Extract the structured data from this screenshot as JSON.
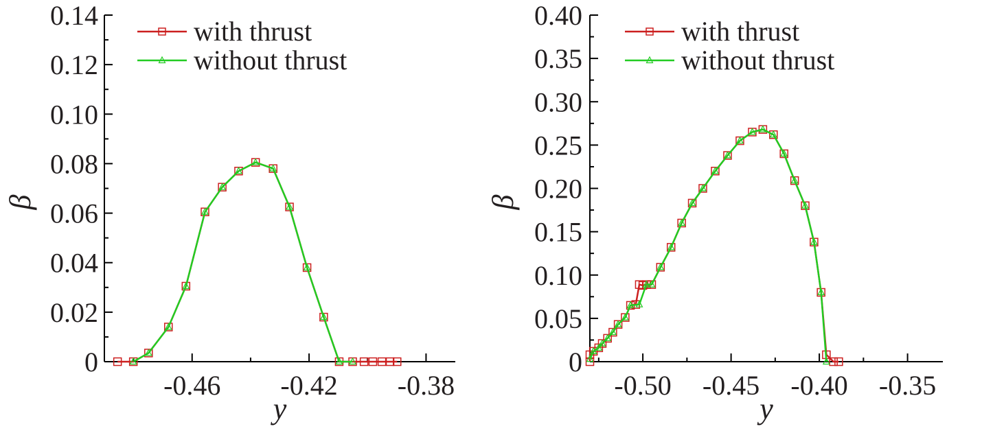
{
  "chart_data": [
    {
      "type": "line",
      "xlabel": "y",
      "ylabel": "β",
      "xlim": [
        -0.49,
        -0.37
      ],
      "ylim": [
        0,
        0.14
      ],
      "xticks": [
        -0.46,
        -0.42,
        -0.38
      ],
      "xtick_labels": [
        "-0.46",
        "-0.42",
        "-0.38"
      ],
      "yticks": [
        0,
        0.02,
        0.04,
        0.06,
        0.08,
        0.1,
        0.12,
        0.14
      ],
      "ytick_labels": [
        "0",
        "0.02",
        "0.04",
        "0.06",
        "0.08",
        "0.10",
        "0.12",
        "0.14"
      ],
      "legend_position": "top-left",
      "series": [
        {
          "name": "with thrust",
          "color": "#cc1f1f",
          "marker": "square",
          "x": [
            -0.4855,
            -0.4801,
            -0.4749,
            -0.4681,
            -0.4621,
            -0.4556,
            -0.4497,
            -0.4441,
            -0.4383,
            -0.4323,
            -0.4267,
            -0.4207,
            -0.415,
            -0.4097,
            -0.4051,
            -0.4012,
            -0.3982,
            -0.3951,
            -0.3923,
            -0.3899
          ],
          "y": [
            0,
            0,
            0.0035,
            0.014,
            0.0305,
            0.0605,
            0.0705,
            0.077,
            0.0805,
            0.078,
            0.0625,
            0.038,
            0.018,
            0,
            0,
            0,
            0,
            0,
            0,
            0
          ]
        },
        {
          "name": "without thrust",
          "color": "#22cc22",
          "marker": "triangle",
          "x": [
            -0.4801,
            -0.4749,
            -0.4681,
            -0.4621,
            -0.4556,
            -0.4497,
            -0.4441,
            -0.4383,
            -0.4323,
            -0.4267,
            -0.4207,
            -0.415,
            -0.4097,
            -0.4051
          ],
          "y": [
            0,
            0.0035,
            0.014,
            0.0305,
            0.0605,
            0.0705,
            0.077,
            0.0805,
            0.078,
            0.0625,
            0.038,
            0.018,
            0,
            0
          ]
        }
      ]
    },
    {
      "type": "line",
      "xlabel": "y",
      "ylabel": "β",
      "xlim": [
        -0.53,
        -0.33
      ],
      "ylim": [
        0,
        0.4
      ],
      "xticks": [
        -0.5,
        -0.45,
        -0.4,
        -0.35
      ],
      "xtick_labels": [
        "-0.50",
        "-0.45",
        "-0.40",
        "-0.35"
      ],
      "yticks": [
        0,
        0.05,
        0.1,
        0.15,
        0.2,
        0.25,
        0.3,
        0.35,
        0.4
      ],
      "ytick_labels": [
        "0",
        "0.05",
        "0.10",
        "0.15",
        "0.20",
        "0.25",
        "0.30",
        "0.35",
        "0.40"
      ],
      "legend_position": "top-left",
      "series": [
        {
          "name": "with thrust",
          "color": "#cc1f1f",
          "marker": "square",
          "x": [
            -0.53,
            -0.53,
            -0.528,
            -0.525,
            -0.523,
            -0.52,
            -0.517,
            -0.514,
            -0.51,
            -0.507,
            -0.504,
            -0.502,
            -0.5,
            -0.498,
            -0.495,
            -0.49,
            -0.484,
            -0.478,
            -0.472,
            -0.466,
            -0.459,
            -0.452,
            -0.445,
            -0.438,
            -0.432,
            -0.426,
            -0.42,
            -0.414,
            -0.408,
            -0.403,
            -0.399,
            -0.396,
            -0.392,
            -0.389
          ],
          "y": [
            0,
            0.008,
            0.012,
            0.016,
            0.021,
            0.027,
            0.034,
            0.043,
            0.051,
            0.065,
            0.066,
            0.089,
            0.088,
            0.089,
            0.089,
            0.109,
            0.132,
            0.16,
            0.183,
            0.2,
            0.22,
            0.238,
            0.255,
            0.265,
            0.268,
            0.262,
            0.24,
            0.209,
            0.18,
            0.138,
            0.08,
            0.008,
            0,
            0
          ]
        },
        {
          "name": "without thrust",
          "color": "#22cc22",
          "marker": "triangle",
          "x": [
            -0.53,
            -0.528,
            -0.525,
            -0.523,
            -0.52,
            -0.517,
            -0.514,
            -0.51,
            -0.507,
            -0.502,
            -0.498,
            -0.495,
            -0.49,
            -0.484,
            -0.478,
            -0.472,
            -0.466,
            -0.459,
            -0.452,
            -0.445,
            -0.438,
            -0.432,
            -0.426,
            -0.42,
            -0.414,
            -0.408,
            -0.403,
            -0.399,
            -0.396
          ],
          "y": [
            0.003,
            0.012,
            0.016,
            0.021,
            0.027,
            0.034,
            0.043,
            0.051,
            0.065,
            0.066,
            0.089,
            0.089,
            0.109,
            0.132,
            0.16,
            0.183,
            0.2,
            0.22,
            0.238,
            0.255,
            0.265,
            0.268,
            0.262,
            0.24,
            0.209,
            0.18,
            0.138,
            0.08,
            0
          ]
        }
      ]
    }
  ]
}
